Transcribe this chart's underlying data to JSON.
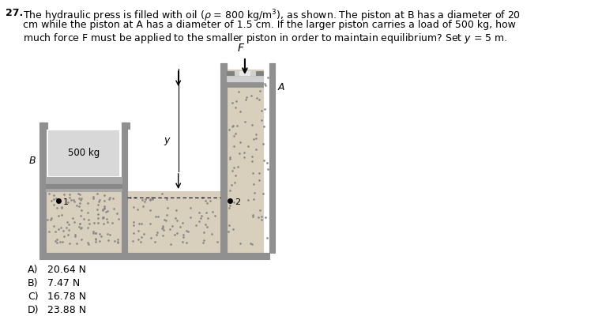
{
  "bg_color": "#ffffff",
  "oil_color": "#d8d0bc",
  "wall_color": "#909090",
  "wall_dark": "#606060",
  "piston_B_color": "#b0b0b0",
  "piston_A_color": "#c0c0c0",
  "rod_color": "#c8c8c8",
  "box_bg": "#d8d8d8",
  "dot_color": "#909090",
  "answers": [
    "A)   20.64 N",
    "B)   7.47 N",
    "C)   16.78 N",
    "D)   23.88 N"
  ]
}
